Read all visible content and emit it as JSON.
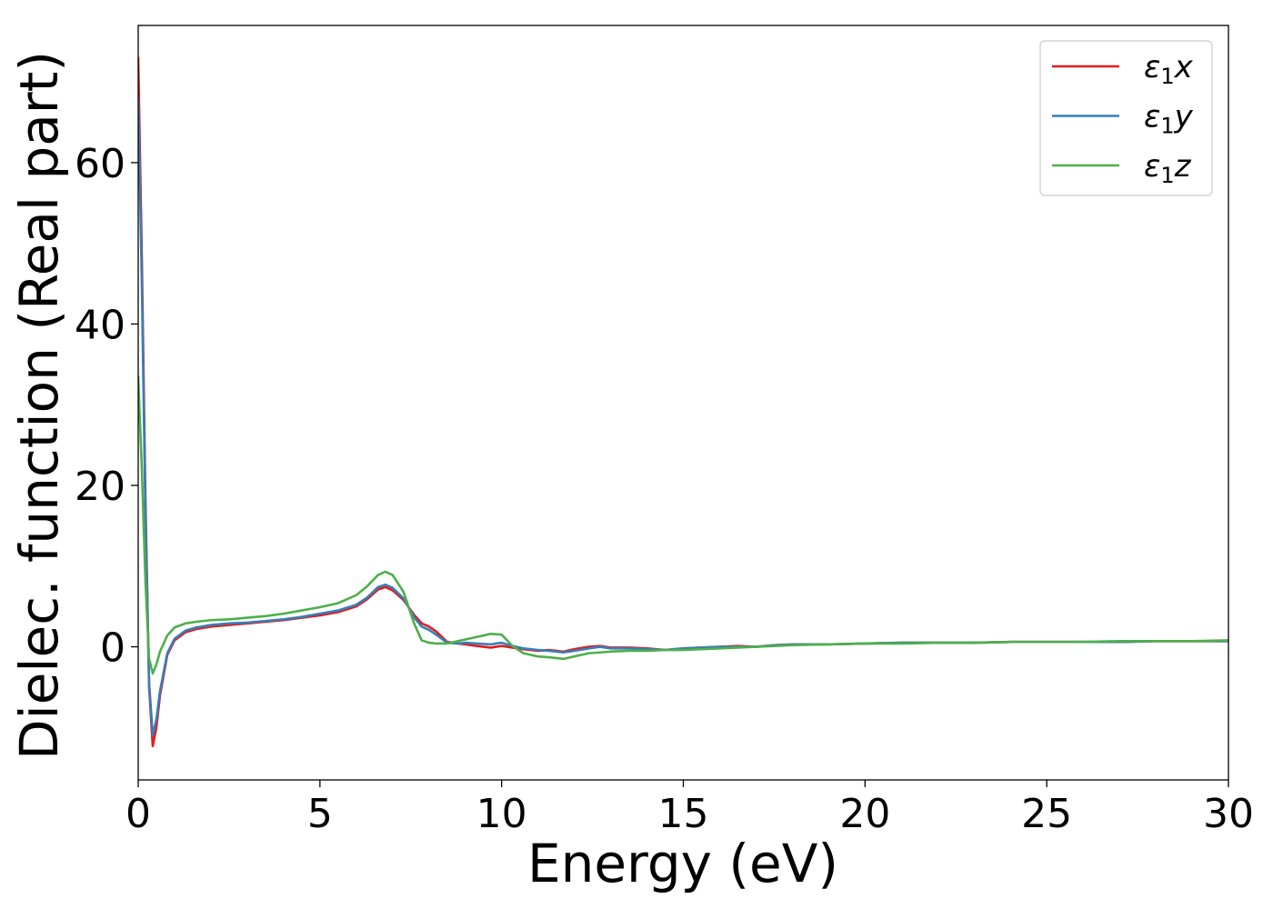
{
  "chart_data": {
    "type": "line",
    "xlabel": "Energy (eV)",
    "ylabel": "Dielec. function (Real part)",
    "xlim": [
      0,
      30
    ],
    "ylim": [
      -16.5,
      77
    ],
    "grid": false,
    "legend_position": "top-right",
    "x_ticks": [
      0,
      5,
      10,
      15,
      20,
      25,
      30
    ],
    "y_ticks": [
      0,
      20,
      40,
      60
    ],
    "series": [
      {
        "name": "ε1x",
        "legend": {
          "base": "ε",
          "sub": "1",
          "suffix": "x"
        },
        "color": "#e41a1c",
        "points": [
          [
            0.0,
            73.0
          ],
          [
            0.1,
            48.0
          ],
          [
            0.2,
            18.0
          ],
          [
            0.3,
            -5.0
          ],
          [
            0.4,
            -12.3
          ],
          [
            0.5,
            -10.0
          ],
          [
            0.6,
            -6.0
          ],
          [
            0.8,
            -1.0
          ],
          [
            1.0,
            0.8
          ],
          [
            1.3,
            1.8
          ],
          [
            1.6,
            2.2
          ],
          [
            2.0,
            2.5
          ],
          [
            2.5,
            2.7
          ],
          [
            3.0,
            2.9
          ],
          [
            3.5,
            3.1
          ],
          [
            4.0,
            3.3
          ],
          [
            4.5,
            3.6
          ],
          [
            5.0,
            3.9
          ],
          [
            5.5,
            4.3
          ],
          [
            6.0,
            5.0
          ],
          [
            6.3,
            5.9
          ],
          [
            6.6,
            7.1
          ],
          [
            6.8,
            7.4
          ],
          [
            7.0,
            7.0
          ],
          [
            7.3,
            5.8
          ],
          [
            7.6,
            3.9
          ],
          [
            7.8,
            2.9
          ],
          [
            8.0,
            2.5
          ],
          [
            8.2,
            1.9
          ],
          [
            8.5,
            0.6
          ],
          [
            8.8,
            0.4
          ],
          [
            9.0,
            0.3
          ],
          [
            9.3,
            0.1
          ],
          [
            9.7,
            -0.1
          ],
          [
            10.0,
            0.1
          ],
          [
            10.3,
            -0.1
          ],
          [
            10.6,
            -0.3
          ],
          [
            11.0,
            -0.5
          ],
          [
            11.3,
            -0.4
          ],
          [
            11.7,
            -0.6
          ],
          [
            12.0,
            -0.3
          ],
          [
            12.4,
            0.0
          ],
          [
            12.7,
            0.1
          ],
          [
            13.0,
            -0.1
          ],
          [
            13.5,
            -0.1
          ],
          [
            14.0,
            -0.2
          ],
          [
            14.5,
            -0.4
          ],
          [
            15.0,
            -0.2
          ],
          [
            15.5,
            -0.1
          ],
          [
            16.0,
            0.0
          ],
          [
            16.5,
            0.1
          ],
          [
            17.0,
            0.0
          ],
          [
            17.5,
            0.2
          ],
          [
            18.0,
            0.3
          ],
          [
            19.0,
            0.3
          ],
          [
            20.0,
            0.4
          ],
          [
            21.0,
            0.5
          ],
          [
            22.0,
            0.5
          ],
          [
            23.0,
            0.5
          ],
          [
            24.0,
            0.6
          ],
          [
            25.0,
            0.6
          ],
          [
            26.0,
            0.6
          ],
          [
            27.0,
            0.6
          ],
          [
            28.0,
            0.7
          ],
          [
            29.0,
            0.7
          ],
          [
            30.0,
            0.7
          ]
        ]
      },
      {
        "name": "ε1y",
        "legend": {
          "base": "ε",
          "sub": "1",
          "suffix": "y"
        },
        "color": "#377eb8",
        "points": [
          [
            0.0,
            68.0
          ],
          [
            0.1,
            45.0
          ],
          [
            0.2,
            16.0
          ],
          [
            0.3,
            -4.5
          ],
          [
            0.4,
            -11.0
          ],
          [
            0.5,
            -9.0
          ],
          [
            0.6,
            -5.5
          ],
          [
            0.8,
            -0.8
          ],
          [
            1.0,
            1.0
          ],
          [
            1.3,
            2.0
          ],
          [
            1.6,
            2.4
          ],
          [
            2.0,
            2.7
          ],
          [
            2.5,
            2.9
          ],
          [
            3.0,
            3.0
          ],
          [
            3.5,
            3.2
          ],
          [
            4.0,
            3.4
          ],
          [
            4.5,
            3.7
          ],
          [
            5.0,
            4.1
          ],
          [
            5.5,
            4.5
          ],
          [
            6.0,
            5.2
          ],
          [
            6.3,
            6.1
          ],
          [
            6.6,
            7.4
          ],
          [
            6.8,
            7.7
          ],
          [
            7.0,
            7.3
          ],
          [
            7.3,
            6.0
          ],
          [
            7.6,
            3.6
          ],
          [
            7.8,
            2.5
          ],
          [
            8.0,
            2.1
          ],
          [
            8.2,
            1.5
          ],
          [
            8.5,
            0.5
          ],
          [
            8.8,
            0.4
          ],
          [
            9.0,
            0.5
          ],
          [
            9.3,
            0.4
          ],
          [
            9.7,
            0.3
          ],
          [
            10.0,
            0.5
          ],
          [
            10.3,
            0.1
          ],
          [
            10.6,
            -0.2
          ],
          [
            11.0,
            -0.4
          ],
          [
            11.3,
            -0.5
          ],
          [
            11.7,
            -0.7
          ],
          [
            12.0,
            -0.5
          ],
          [
            12.4,
            -0.2
          ],
          [
            12.7,
            0.0
          ],
          [
            13.0,
            -0.2
          ],
          [
            13.5,
            -0.2
          ],
          [
            14.0,
            -0.3
          ],
          [
            14.5,
            -0.4
          ],
          [
            15.0,
            -0.2
          ],
          [
            15.5,
            -0.1
          ],
          [
            16.0,
            0.0
          ],
          [
            16.5,
            0.0
          ],
          [
            17.0,
            0.0
          ],
          [
            17.5,
            0.2
          ],
          [
            18.0,
            0.3
          ],
          [
            19.0,
            0.3
          ],
          [
            20.0,
            0.4
          ],
          [
            21.0,
            0.5
          ],
          [
            22.0,
            0.5
          ],
          [
            23.0,
            0.5
          ],
          [
            24.0,
            0.6
          ],
          [
            25.0,
            0.6
          ],
          [
            26.0,
            0.6
          ],
          [
            27.0,
            0.6
          ],
          [
            28.0,
            0.7
          ],
          [
            29.0,
            0.7
          ],
          [
            30.0,
            0.7
          ]
        ]
      },
      {
        "name": "ε1z",
        "legend": {
          "base": "ε",
          "sub": "1",
          "suffix": "z"
        },
        "color": "#4daf4a",
        "points": [
          [
            0.0,
            33.5
          ],
          [
            0.1,
            22.0
          ],
          [
            0.2,
            8.0
          ],
          [
            0.3,
            -1.5
          ],
          [
            0.4,
            -3.3
          ],
          [
            0.5,
            -2.2
          ],
          [
            0.6,
            -0.6
          ],
          [
            0.8,
            1.4
          ],
          [
            1.0,
            2.4
          ],
          [
            1.3,
            2.9
          ],
          [
            1.6,
            3.1
          ],
          [
            2.0,
            3.3
          ],
          [
            2.5,
            3.4
          ],
          [
            3.0,
            3.6
          ],
          [
            3.5,
            3.8
          ],
          [
            4.0,
            4.1
          ],
          [
            4.5,
            4.5
          ],
          [
            5.0,
            4.9
          ],
          [
            5.5,
            5.4
          ],
          [
            6.0,
            6.4
          ],
          [
            6.3,
            7.5
          ],
          [
            6.6,
            8.9
          ],
          [
            6.8,
            9.3
          ],
          [
            7.0,
            8.9
          ],
          [
            7.3,
            6.8
          ],
          [
            7.6,
            2.8
          ],
          [
            7.8,
            0.8
          ],
          [
            8.0,
            0.5
          ],
          [
            8.2,
            0.4
          ],
          [
            8.5,
            0.4
          ],
          [
            8.8,
            0.7
          ],
          [
            9.0,
            0.9
          ],
          [
            9.3,
            1.2
          ],
          [
            9.7,
            1.6
          ],
          [
            10.0,
            1.5
          ],
          [
            10.3,
            0.1
          ],
          [
            10.6,
            -0.8
          ],
          [
            11.0,
            -1.2
          ],
          [
            11.3,
            -1.3
          ],
          [
            11.7,
            -1.5
          ],
          [
            12.0,
            -1.2
          ],
          [
            12.4,
            -0.8
          ],
          [
            12.7,
            -0.7
          ],
          [
            13.0,
            -0.6
          ],
          [
            13.5,
            -0.5
          ],
          [
            14.0,
            -0.5
          ],
          [
            14.5,
            -0.4
          ],
          [
            15.0,
            -0.4
          ],
          [
            15.5,
            -0.3
          ],
          [
            16.0,
            -0.2
          ],
          [
            16.5,
            -0.1
          ],
          [
            17.0,
            0.0
          ],
          [
            17.5,
            0.1
          ],
          [
            18.0,
            0.2
          ],
          [
            19.0,
            0.3
          ],
          [
            20.0,
            0.4
          ],
          [
            21.0,
            0.4
          ],
          [
            22.0,
            0.5
          ],
          [
            23.0,
            0.5
          ],
          [
            24.0,
            0.6
          ],
          [
            25.0,
            0.6
          ],
          [
            26.0,
            0.6
          ],
          [
            27.0,
            0.7
          ],
          [
            28.0,
            0.7
          ],
          [
            29.0,
            0.7
          ],
          [
            30.0,
            0.8
          ]
        ]
      }
    ]
  }
}
